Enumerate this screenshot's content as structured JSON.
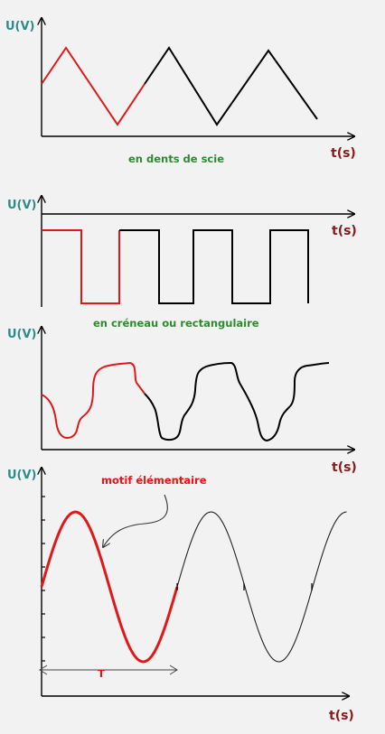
{
  "colors": {
    "highlight": "#e01818",
    "signal": "#000000",
    "y_label": "#2e8b8b",
    "x_label": "#8b1a1a",
    "caption": "#2e8b2e"
  },
  "graph1": {
    "y_label": "U(V)",
    "x_label": "t(s)",
    "caption": "en dents de scie"
  },
  "graph2": {
    "y_label": "U(V)",
    "x_label": "t(s)",
    "caption": "en créneau ou rectangulaire"
  },
  "graph3": {
    "y_label": "U(V)",
    "x_label": "t(s)"
  },
  "graph4": {
    "y_label": "U(V)",
    "x_label": "t(s)",
    "annotation": "motif élémentaire",
    "period_label": "T"
  }
}
